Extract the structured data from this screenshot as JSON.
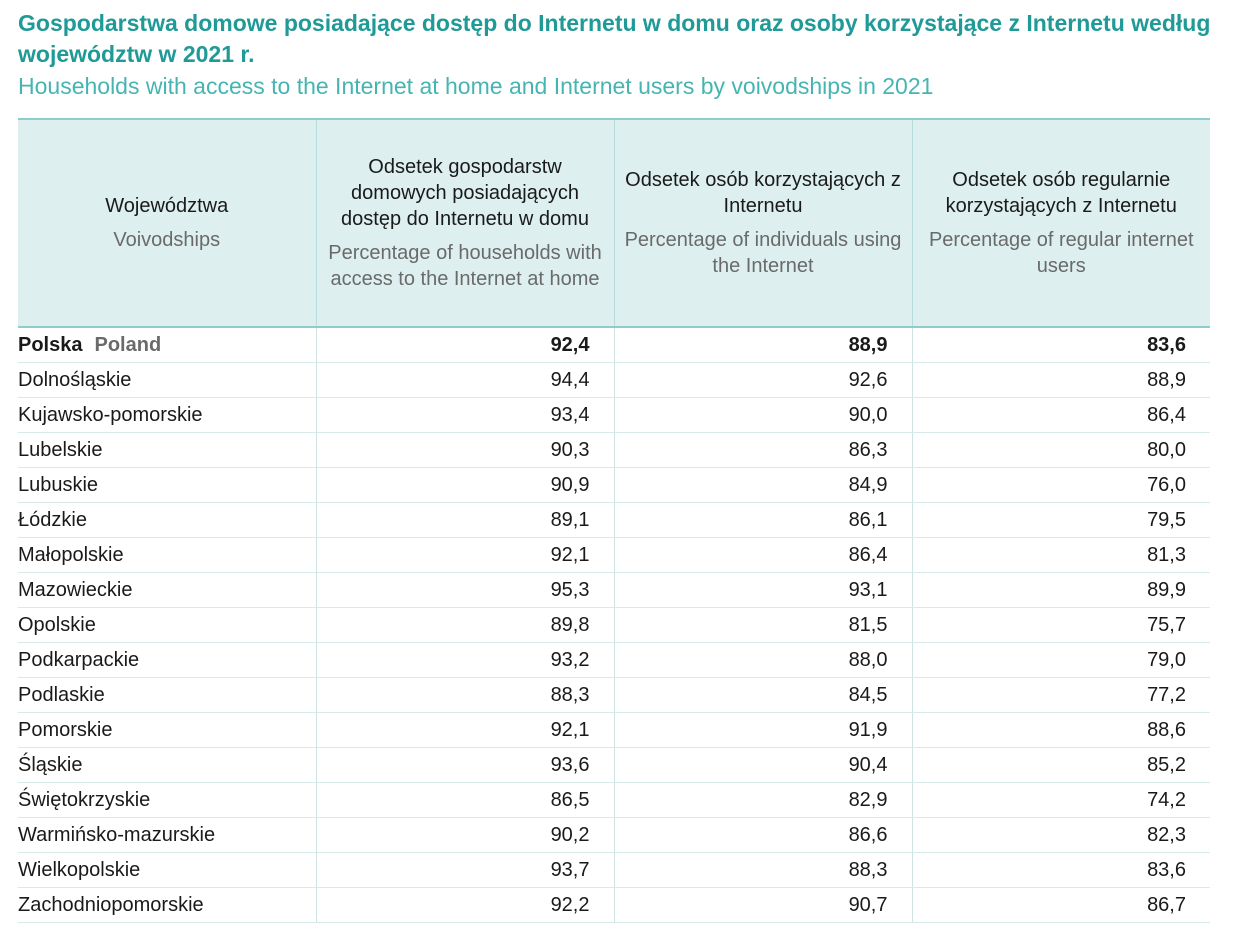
{
  "title_pl": "Gospodarstwa domowe posiadające dostęp do Internetu w domu oraz osoby korzystające z Internetu według województw w 2021 r.",
  "title_en": "Households with access to the Internet at home and Internet users by voivodships in 2021",
  "headers": [
    {
      "pl": "Województwa",
      "en": "Voivodships"
    },
    {
      "pl": "Odsetek gospodarstw domowych posiadających dostęp do Internetu w domu",
      "en": "Percentage of households with access to the Internet at home"
    },
    {
      "pl": "Odsetek osób korzystających z Internetu",
      "en": "Percentage of individuals using the Internet"
    },
    {
      "pl": "Odsetek osób regularnie korzystających z Internetu",
      "en": "Percentage of regular internet users"
    }
  ],
  "total": {
    "name_pl": "Polska",
    "name_en": "Poland",
    "values": [
      "92,4",
      "88,9",
      "83,6"
    ]
  },
  "rows": [
    {
      "name": "Dolnośląskie",
      "values": [
        "94,4",
        "92,6",
        "88,9"
      ]
    },
    {
      "name": "Kujawsko-pomorskie",
      "values": [
        "93,4",
        "90,0",
        "86,4"
      ]
    },
    {
      "name": "Lubelskie",
      "values": [
        "90,3",
        "86,3",
        "80,0"
      ]
    },
    {
      "name": "Lubuskie",
      "values": [
        "90,9",
        "84,9",
        "76,0"
      ]
    },
    {
      "name": "Łódzkie",
      "values": [
        "89,1",
        "86,1",
        "79,5"
      ]
    },
    {
      "name": "Małopolskie",
      "values": [
        "92,1",
        "86,4",
        "81,3"
      ]
    },
    {
      "name": "Mazowieckie",
      "values": [
        "95,3",
        "93,1",
        "89,9"
      ]
    },
    {
      "name": "Opolskie",
      "values": [
        "89,8",
        "81,5",
        "75,7"
      ]
    },
    {
      "name": "Podkarpackie",
      "values": [
        "93,2",
        "88,0",
        "79,0"
      ]
    },
    {
      "name": "Podlaskie",
      "values": [
        "88,3",
        "84,5",
        "77,2"
      ]
    },
    {
      "name": "Pomorskie",
      "values": [
        "92,1",
        "91,9",
        "88,6"
      ]
    },
    {
      "name": "Śląskie",
      "values": [
        "93,6",
        "90,4",
        "85,2"
      ]
    },
    {
      "name": "Świętokrzyskie",
      "values": [
        "86,5",
        "82,9",
        "74,2"
      ]
    },
    {
      "name": "Warmińsko-mazurskie",
      "values": [
        "90,2",
        "86,6",
        "82,3"
      ]
    },
    {
      "name": "Wielkopolskie",
      "values": [
        "93,7",
        "88,3",
        "83,6"
      ]
    },
    {
      "name": "Zachodniopomorskie",
      "values": [
        "92,2",
        "90,7",
        "86,7"
      ]
    }
  ]
}
